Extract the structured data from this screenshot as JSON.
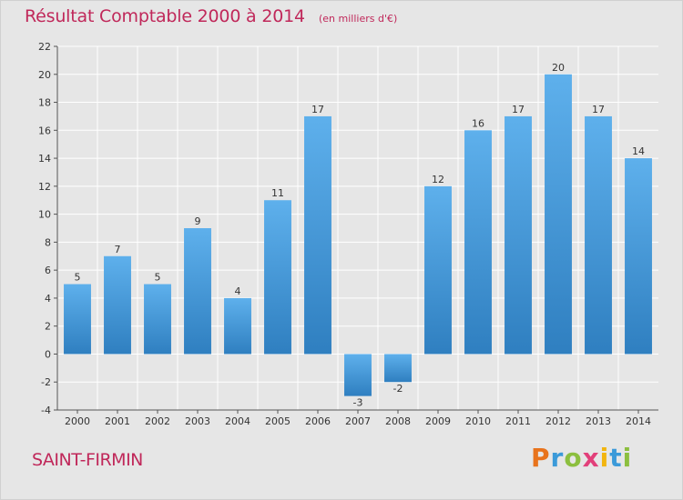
{
  "chart_data": {
    "type": "bar",
    "title": "Résultat Comptable 2000 à 2014",
    "unit_note": "(en milliers d'€)",
    "categories": [
      "2000",
      "2001",
      "2002",
      "2003",
      "2004",
      "2005",
      "2006",
      "2007",
      "2008",
      "2009",
      "2010",
      "2011",
      "2012",
      "2013",
      "2014"
    ],
    "values": [
      5,
      7,
      5,
      9,
      4,
      11,
      17,
      -3,
      -2,
      12,
      16,
      17,
      20,
      17,
      14
    ],
    "ylim": [
      -4,
      22
    ],
    "yticks": [
      -4,
      -2,
      0,
      2,
      4,
      6,
      8,
      10,
      12,
      14,
      16,
      18,
      20,
      22
    ],
    "xlabel": "",
    "ylabel": "",
    "grid": true,
    "bar_color_top": "#5eb0ec",
    "bar_color_bottom": "#2f7fc0"
  },
  "commune": "SAINT-FIRMIN",
  "brand": {
    "letters": [
      "P",
      "r",
      "o",
      "x",
      "i",
      "t",
      "i"
    ],
    "colors": [
      "#e8731c",
      "#3b9ad9",
      "#8cbf3f",
      "#e2407a",
      "#f2b50f",
      "#3b9ad9",
      "#8cbf3f"
    ]
  }
}
